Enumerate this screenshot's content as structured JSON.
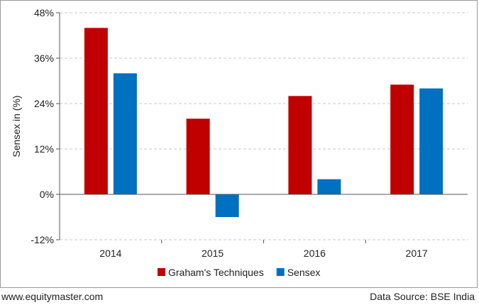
{
  "chart_data": {
    "type": "bar",
    "categories": [
      "2014",
      "2015",
      "2016",
      "2017"
    ],
    "series": [
      {
        "name": "Graham's Techniques",
        "color": "#c00000",
        "values": [
          44,
          20,
          26,
          29
        ]
      },
      {
        "name": "Sensex",
        "color": "#0070c0",
        "values": [
          32,
          -6,
          4,
          28
        ]
      }
    ],
    "ylabel": "Sensex in (%)",
    "xlabel": "",
    "ylim": [
      -12,
      48
    ],
    "yticks": [
      48,
      36,
      24,
      12,
      0,
      -12
    ],
    "ytick_labels": [
      "48%",
      "36%",
      "24%",
      "12%",
      "0%",
      "-12%"
    ],
    "grid": true,
    "legend_position": "bottom"
  },
  "footer": {
    "website": "www.equitymaster.com",
    "source": "Data Source: BSE India"
  }
}
